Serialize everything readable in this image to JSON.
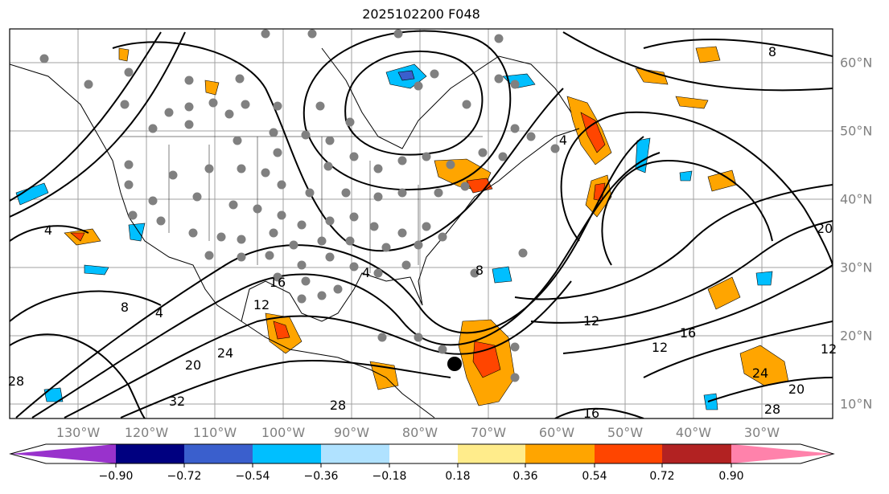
{
  "title": "2025102200 F048",
  "lon_labels": [
    "130°W",
    "120°W",
    "110°W",
    "100°W",
    "90°W",
    "80°W",
    "70°W",
    "60°W",
    "50°W",
    "40°W",
    "30°W"
  ],
  "lat_labels": [
    "60°N",
    "50°N",
    "40°N",
    "30°N",
    "20°N",
    "10°N"
  ],
  "contour_labels": [
    "4",
    "8",
    "4",
    "4",
    "8",
    "12",
    "16",
    "20",
    "24",
    "28",
    "32",
    "28",
    "12",
    "16",
    "20",
    "24",
    "28",
    "16",
    "12",
    "8",
    "4",
    "20",
    "12"
  ],
  "colorbar": {
    "ticks": [
      "−0.90",
      "−0.72",
      "−0.54",
      "−0.36",
      "−0.18",
      "0.18",
      "0.36",
      "0.54",
      "0.72",
      "0.90"
    ],
    "colors": [
      "#9932CC",
      "#000080",
      "#3A5FCD",
      "#00BFFF",
      "#B0E2FF",
      "#FFFFFF",
      "#FFEC8B",
      "#FFA500",
      "#FF4500",
      "#B22222",
      "#FF82AB"
    ]
  }
}
